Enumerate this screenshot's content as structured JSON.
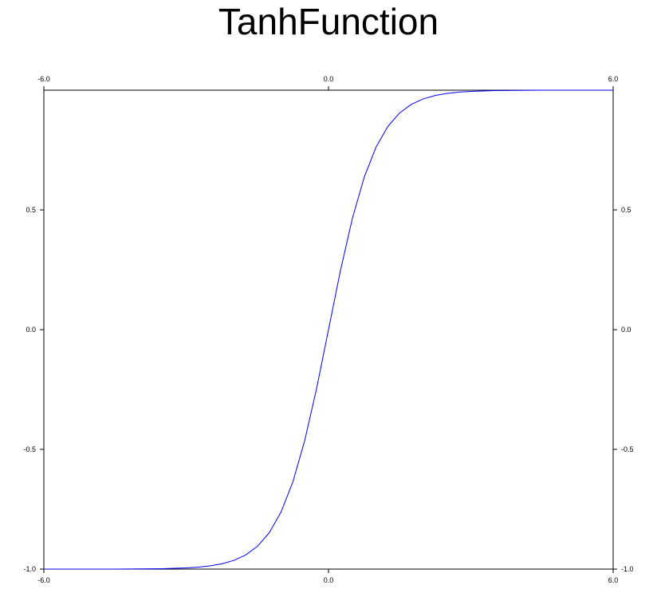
{
  "chart_data": {
    "type": "line",
    "title": "TanhFunction",
    "xlim": [
      -6.0,
      6.0
    ],
    "ylim": [
      -1.0,
      1.0
    ],
    "x_ticks": [
      -6.0,
      0.0,
      6.0
    ],
    "x_tick_labels": [
      "-6.0",
      "0.0",
      "6.0"
    ],
    "y_ticks": [
      -1.0,
      -0.5,
      0.0,
      0.5
    ],
    "y_tick_labels": [
      "-1.0",
      "-0.5",
      "0.0",
      "0.5"
    ],
    "x_ticks_top": true,
    "y_ticks_right": true,
    "grid": false,
    "legend": "none",
    "series": [
      {
        "color": "#0000ff",
        "x": [
          -6.0,
          -5.5,
          -5.0,
          -4.5,
          -4.0,
          -3.5,
          -3.0,
          -2.75,
          -2.5,
          -2.25,
          -2.0,
          -1.75,
          -1.5,
          -1.25,
          -1.0,
          -0.75,
          -0.5,
          -0.25,
          0.0,
          0.25,
          0.5,
          0.75,
          1.0,
          1.25,
          1.5,
          1.75,
          2.0,
          2.25,
          2.5,
          2.75,
          3.0,
          3.5,
          4.0,
          4.5,
          5.0,
          5.5,
          6.0
        ],
        "y": [
          -1.0,
          -1.0,
          -0.9999,
          -0.9998,
          -0.9993,
          -0.9982,
          -0.9951,
          -0.9919,
          -0.9866,
          -0.978,
          -0.964,
          -0.9414,
          -0.9051,
          -0.8483,
          -0.7616,
          -0.6351,
          -0.4621,
          -0.2449,
          0.0,
          0.2449,
          0.4621,
          0.6351,
          0.7616,
          0.8483,
          0.9051,
          0.9414,
          0.964,
          0.978,
          0.9866,
          0.9919,
          0.9951,
          0.9982,
          0.9993,
          0.9998,
          0.9999,
          1.0,
          1.0
        ]
      }
    ]
  }
}
